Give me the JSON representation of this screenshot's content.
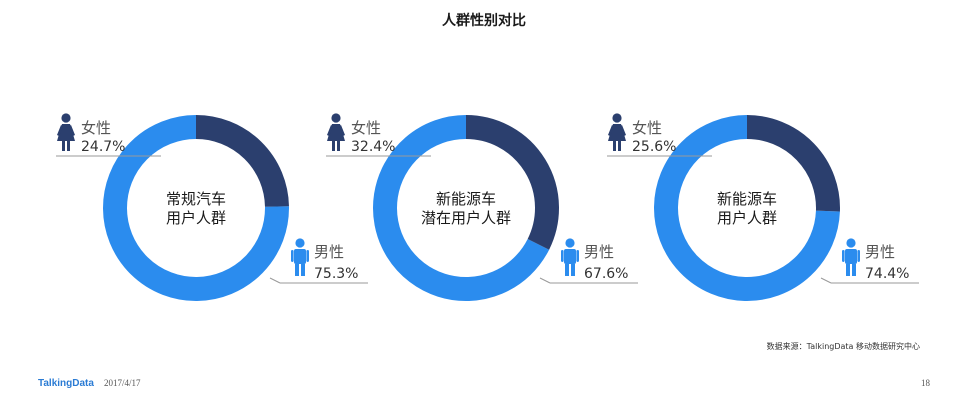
{
  "page": {
    "title": "人群性别对比",
    "source": "数据来源：TalkingData 移动数据研究中心",
    "logo": "TalkingData",
    "date": "2017/4/17",
    "page_number": "18"
  },
  "colors": {
    "female": "#2b3f6e",
    "male": "#2b8cee",
    "female_icon": "#2b3f6e",
    "male_icon": "#2b8cee",
    "leader_line": "#9a9a9a"
  },
  "icons": {
    "female": "female-person-icon",
    "male": "male-person-icon"
  },
  "chart_data": [
    {
      "type": "pie",
      "center_label": [
        "常规汽车",
        "用户人群"
      ],
      "slices": [
        {
          "label": "女性",
          "value": 24.7,
          "display": "24.7%"
        },
        {
          "label": "男性",
          "value": 75.3,
          "display": "75.3%"
        }
      ]
    },
    {
      "type": "pie",
      "center_label": [
        "新能源车",
        "潜在用户人群"
      ],
      "slices": [
        {
          "label": "女性",
          "value": 32.4,
          "display": "32.4%"
        },
        {
          "label": "男性",
          "value": 67.6,
          "display": "67.6%"
        }
      ]
    },
    {
      "type": "pie",
      "center_label": [
        "新能源车",
        "用户人群"
      ],
      "slices": [
        {
          "label": "女性",
          "value": 25.6,
          "display": "25.6%"
        },
        {
          "label": "男性",
          "value": 74.4,
          "display": "74.4%"
        }
      ]
    }
  ]
}
